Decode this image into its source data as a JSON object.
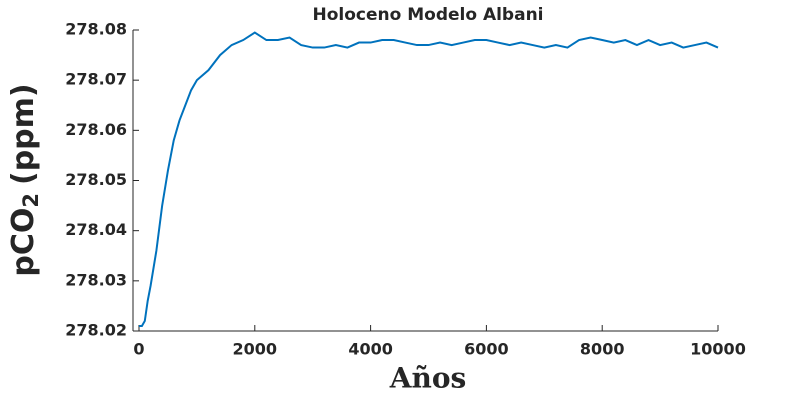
{
  "chart_data": {
    "type": "line",
    "title": "Holoceno Modelo Albani",
    "xlabel": "Años",
    "ylabel": {
      "main": "pCO",
      "sub": "2",
      "unit": "(ppm)"
    },
    "x": [
      0,
      50,
      100,
      150,
      200,
      300,
      400,
      500,
      600,
      700,
      800,
      900,
      1000,
      1200,
      1400,
      1600,
      1800,
      2000,
      2200,
      2400,
      2600,
      2800,
      3000,
      3200,
      3400,
      3600,
      3800,
      4000,
      4200,
      4400,
      4600,
      4800,
      5000,
      5200,
      5400,
      5600,
      5800,
      6000,
      6200,
      6400,
      6600,
      6800,
      7000,
      7200,
      7400,
      7600,
      7800,
      8000,
      8200,
      8400,
      8600,
      8800,
      9000,
      9200,
      9400,
      9600,
      9800,
      10000
    ],
    "series": [
      {
        "color": "#0072bd",
        "values": [
          278.021,
          278.021,
          278.022,
          278.026,
          278.029,
          278.036,
          278.045,
          278.052,
          278.058,
          278.062,
          278.065,
          278.068,
          278.07,
          278.072,
          278.075,
          278.077,
          278.078,
          278.0795,
          278.078,
          278.078,
          278.0785,
          278.077,
          278.0765,
          278.0765,
          278.077,
          278.0765,
          278.0775,
          278.0775,
          278.078,
          278.078,
          278.0775,
          278.077,
          278.077,
          278.0775,
          278.077,
          278.0775,
          278.078,
          278.078,
          278.0775,
          278.077,
          278.0775,
          278.077,
          278.0765,
          278.077,
          278.0765,
          278.078,
          278.0785,
          278.078,
          278.0775,
          278.078,
          278.077,
          278.078,
          278.077,
          278.0775,
          278.0765,
          278.077,
          278.0775,
          278.0765
        ]
      }
    ],
    "xlim": [
      0,
      10000
    ],
    "xticks": [
      0,
      2000,
      4000,
      6000,
      8000,
      10000
    ],
    "ylim": [
      278.02,
      278.08
    ],
    "yticks": [
      278.02,
      278.03,
      278.04,
      278.05,
      278.06,
      278.07,
      278.08
    ]
  }
}
